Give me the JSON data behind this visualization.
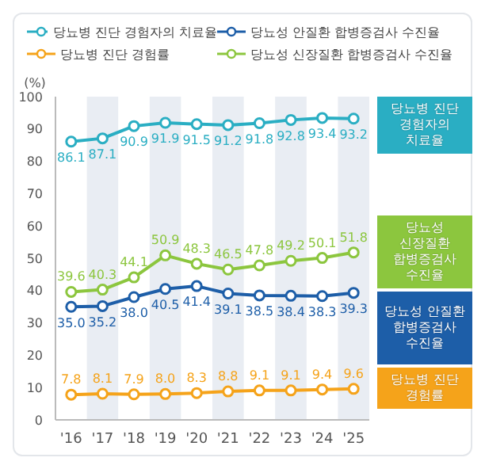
{
  "chart_data": {
    "type": "line",
    "ylabel": "(%)",
    "categories": [
      "'16",
      "'17",
      "'18",
      "'19",
      "'20",
      "'21",
      "'22",
      "'23",
      "'24",
      "'25"
    ],
    "series": [
      {
        "name": "당뇨병 진단 경험자의 치료율",
        "color": "#2aaec3",
        "values": [
          86.1,
          87.1,
          90.9,
          91.9,
          91.5,
          91.2,
          91.8,
          92.8,
          93.4,
          93.2
        ],
        "value_labels": [
          "86.1",
          "87.1",
          "90.9",
          "91.9",
          "91.5",
          "91.2",
          "91.8",
          "92.8",
          "93.4",
          "93.2"
        ]
      },
      {
        "name": "당뇨성 안질환 합병증검사 수진율",
        "color": "#1d5ea8",
        "values": [
          35.0,
          35.2,
          38.0,
          40.5,
          41.4,
          39.1,
          38.5,
          38.4,
          38.3,
          39.3
        ],
        "value_labels": [
          "35.0",
          "35.2",
          "38.0",
          "40.5",
          "41.4",
          "39.1",
          "38.5",
          "38.4",
          "38.3",
          "39.3"
        ]
      },
      {
        "name": "당뇨병 진단 경험률",
        "color": "#f5a31a",
        "values": [
          7.8,
          8.1,
          7.9,
          8.0,
          8.3,
          8.8,
          9.1,
          9.1,
          9.4,
          9.6
        ],
        "value_labels": [
          "7.8",
          "8.1",
          "7.9",
          "8.0",
          "8.3",
          "8.8",
          "9.1",
          "9.1",
          "9.4",
          "9.6"
        ]
      },
      {
        "name": "당뇨성 신장질환 합병증검사 수진율",
        "color": "#8cc63e",
        "values": [
          39.6,
          40.3,
          44.1,
          50.9,
          48.3,
          46.5,
          47.8,
          49.2,
          50.1,
          51.8
        ],
        "value_labels": [
          "39.6",
          "40.3",
          "44.1",
          "50.9",
          "48.3",
          "46.5",
          "47.8",
          "49.2",
          "50.1",
          "51.8"
        ]
      }
    ],
    "ylim": [
      0,
      100
    ],
    "yticks": [
      0,
      10,
      20,
      30,
      40,
      50,
      60,
      70,
      80,
      90,
      100
    ],
    "bands": [
      {
        "axis": "x",
        "from": "'17",
        "to": "'17",
        "color": "#e9edf3"
      },
      {
        "axis": "x",
        "from": "'19",
        "to": "'19",
        "color": "#e9edf3"
      },
      {
        "axis": "x",
        "from": "'21",
        "to": "'21",
        "color": "#e9edf3"
      },
      {
        "axis": "x",
        "from": "'23",
        "to": "'23",
        "color": "#e9edf3"
      },
      {
        "axis": "x",
        "from": "'25",
        "to": "'25",
        "color": "#e9edf3"
      }
    ],
    "legend": "top",
    "marker": "circle",
    "line_style": "solid",
    "grid": false
  }
}
